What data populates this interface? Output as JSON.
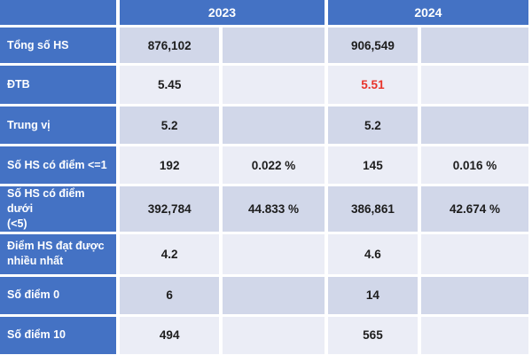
{
  "chart_data": {
    "type": "table",
    "description": "Comparison table of student exam score statistics for 2023 vs 2024",
    "year_headers": [
      "2023",
      "2024"
    ],
    "sub_columns": [
      "count",
      "percent"
    ],
    "rows": [
      {
        "label": "Tổng số HS",
        "y2023": {
          "value": "876,102",
          "percent": ""
        },
        "y2024": {
          "value": "906,549",
          "percent": ""
        }
      },
      {
        "label": "ĐTB",
        "y2023": {
          "value": "5.45",
          "percent": ""
        },
        "y2024": {
          "value": "5.51",
          "percent": ""
        },
        "y2024_highlighted": true
      },
      {
        "label": "Trung vị",
        "y2023": {
          "value": "5.2",
          "percent": ""
        },
        "y2024": {
          "value": "5.2",
          "percent": ""
        }
      },
      {
        "label": "Số HS có điểm <=1",
        "y2023": {
          "value": "192",
          "percent": "0.022 %"
        },
        "y2024": {
          "value": "145",
          "percent": "0.016 %"
        }
      },
      {
        "label": "Số HS có điểm dưới\n(<5)",
        "y2023": {
          "value": "392,784",
          "percent": "44.833 %"
        },
        "y2024": {
          "value": "386,861",
          "percent": "42.674 %"
        }
      },
      {
        "label": "Điểm HS đạt được\nnhiều nhất",
        "y2023": {
          "value": "4.2",
          "percent": ""
        },
        "y2024": {
          "value": "4.6",
          "percent": ""
        }
      },
      {
        "label": "Số điểm 0",
        "y2023": {
          "value": "6",
          "percent": ""
        },
        "y2024": {
          "value": "14",
          "percent": ""
        }
      },
      {
        "label": "Số điểm 10",
        "y2023": {
          "value": "494",
          "percent": ""
        },
        "y2024": {
          "value": "565",
          "percent": ""
        }
      }
    ]
  },
  "colors": {
    "header_blue": "#4472c4",
    "band_dark": "#d1d7e9",
    "band_light": "#ebedf6",
    "label_text": "#ffffff",
    "value_text": "#1d1d1d",
    "highlight_red": "#e8332a",
    "grid_white": "#ffffff"
  }
}
